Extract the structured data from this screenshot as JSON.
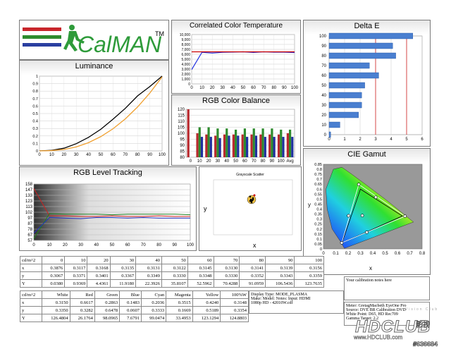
{
  "logo": {
    "text": "CalMAN",
    "tm": "TM"
  },
  "luminance": {
    "title": "Luminance",
    "yticks": [
      "0",
      "0.1",
      "0.2",
      "0.3",
      "0.4",
      "0.5",
      "0.6",
      "0.7",
      "0.8",
      "0.9",
      "1"
    ],
    "xticks": [
      "0",
      "10",
      "20",
      "30",
      "40",
      "50",
      "60",
      "70",
      "80",
      "90",
      "100"
    ]
  },
  "cct": {
    "title": "Correlated Color Temperature",
    "yticks": [
      "0",
      "1,000",
      "2,000",
      "3,000",
      "4,000",
      "5,000",
      "6,000",
      "7,000",
      "8,000",
      "9,000",
      "10,000"
    ],
    "xticks": [
      "0",
      "10",
      "20",
      "30",
      "40",
      "50",
      "60",
      "70",
      "80",
      "90",
      "100"
    ]
  },
  "rgbbal": {
    "title": "RGB Color Balance",
    "yticks": [
      "80",
      "85",
      "90",
      "95",
      "100",
      "105",
      "110",
      "115",
      "120"
    ],
    "xticks": [
      "0",
      "10",
      "20",
      "30",
      "40",
      "50",
      "60",
      "70",
      "80",
      "90",
      "100",
      "Avg"
    ]
  },
  "deltae": {
    "title": "Delta E",
    "yticks": [
      "0",
      "10",
      "20",
      "30",
      "40",
      "50",
      "60",
      "70",
      "80",
      "90",
      "100"
    ],
    "xticks": [
      "0",
      "1",
      "2",
      "3",
      "4",
      "5",
      "6"
    ]
  },
  "rgbtrack": {
    "title": "RGB Level Tracking",
    "yticks": [
      "57",
      "67",
      "78",
      "87",
      "97",
      "102",
      "113",
      "123",
      "133",
      "147",
      "158"
    ],
    "xticks": [
      "0",
      "10",
      "20",
      "30",
      "40",
      "50",
      "60",
      "70",
      "80",
      "90",
      "100"
    ]
  },
  "scatter": {
    "title": "Grayscale Scatter",
    "xlabel": "x",
    "ylabel": "y"
  },
  "cie": {
    "title": "CIE Gamut",
    "xlabel": "x",
    "ylabel": "y",
    "yticks": [
      "0",
      "0.05",
      "0.1",
      "0.15",
      "0.2",
      "0.25",
      "0.3",
      "0.35",
      "0.4",
      "0.45",
      "0.5",
      "0.55",
      "0.6",
      "0.65",
      "0.7",
      "0.75",
      "0.8",
      "0.85"
    ],
    "xticks": [
      "0",
      "0.1",
      "0.2",
      "0.3",
      "0.4",
      "0.5",
      "0.6",
      "0.7",
      "0.8"
    ]
  },
  "table1": {
    "header": [
      "cd/m^2",
      "0",
      "10",
      "20",
      "30",
      "40",
      "50",
      "60",
      "70",
      "80",
      "90",
      "100"
    ],
    "rows": [
      [
        "x",
        "0.3876",
        "0.3117",
        "0.3168",
        "0.3135",
        "0.3131",
        "0.3122",
        "0.3145",
        "0.3130",
        "0.3141",
        "0.3139",
        "0.3156"
      ],
      [
        "y",
        "0.3067",
        "0.3371",
        "0.3401",
        "0.3367",
        "0.3349",
        "0.3330",
        "0.3348",
        "0.3330",
        "0.3352",
        "0.3343",
        "0.3359"
      ],
      [
        "Y",
        "0.0380",
        "0.9369",
        "4.4361",
        "11.9180",
        "22.3926",
        "35.8107",
        "52.5962",
        "70.4288",
        "91.0959",
        "106.5436",
        "123.7635"
      ]
    ]
  },
  "table2": {
    "header": [
      "cd/m^2",
      "White",
      "Red",
      "Green",
      "Blue",
      "Cyan",
      "Magenta",
      "Yellow",
      "100%W"
    ],
    "rows": [
      [
        "x",
        "0.3150",
        "0.6617",
        "0.2863",
        "0.1483",
        "0.2036",
        "0.3515",
        "0.4240",
        "0.3148"
      ],
      [
        "y",
        "0.3350",
        "0.3282",
        "0.6478",
        "0.0607",
        "0.3333",
        "0.1669",
        "0.5189",
        "0.3354"
      ],
      [
        "Y",
        "126.4804",
        "26.1764",
        "98.0965",
        "7.6791",
        "99.0474",
        "33.4953",
        "123.1294",
        "124.8803"
      ]
    ]
  },
  "display_info": [
    "Display Type: MODE_PLASMA",
    "Make: Model: Notes: Input: HDMI",
    "1080p HD  -   42010W.cdf"
  ],
  "meter_info": [
    "Meter: GretagMacbeth EyeOne Pro",
    "Source: DVE BR Calibration DVD",
    "White Point: D65, HD Rec709",
    "Gamma Target: 2.2"
  ],
  "notes": "Your calibration notes here",
  "watermark": {
    "brand": "HDCLUB",
    "site": "www.HDCLUB.com",
    "cn": "影视",
    "id": "#636684",
    "tagline": "Vision Club"
  },
  "chart_data": [
    {
      "type": "line",
      "title": "Luminance",
      "x": [
        0,
        10,
        20,
        30,
        40,
        50,
        60,
        70,
        80,
        90,
        100
      ],
      "ylim": [
        0,
        1
      ],
      "xlim": [
        0,
        100
      ],
      "series": [
        {
          "values": [
            0,
            0.008,
            0.036,
            0.096,
            0.181,
            0.289,
            0.425,
            0.569,
            0.736,
            0.861,
            1.0
          ],
          "color": "#000000"
        },
        {
          "values": [
            0,
            0.004,
            0.019,
            0.053,
            0.11,
            0.191,
            0.296,
            0.428,
            0.587,
            0.774,
            0.99
          ],
          "color": "#f0a030"
        }
      ]
    },
    {
      "type": "line",
      "title": "Correlated Color Temperature",
      "x": [
        0,
        10,
        20,
        30,
        40,
        50,
        60,
        70,
        80,
        90,
        100
      ],
      "ylim": [
        0,
        10000
      ],
      "xlim": [
        0,
        100
      ],
      "series": [
        {
          "values": [
            2900,
            6400,
            6250,
            6400,
            6450,
            6500,
            6380,
            6500,
            6420,
            6430,
            6350
          ],
          "color": "#2030e0"
        },
        {
          "values": [
            6500,
            6500,
            6500,
            6500,
            6500,
            6500,
            6500,
            6500,
            6500,
            6500,
            6500
          ],
          "color": "#cc0000"
        }
      ]
    },
    {
      "type": "bar",
      "title": "RGB Color Balance",
      "categories": [
        "0",
        "10",
        "20",
        "30",
        "40",
        "50",
        "60",
        "70",
        "80",
        "90",
        "100",
        "Avg"
      ],
      "ylim": [
        80,
        120
      ],
      "series": [
        {
          "values": [
            120,
            100,
            99,
            98,
            99,
            99,
            99,
            99,
            99,
            99,
            99,
            100
          ],
          "color": "#b8292e"
        },
        {
          "values": [
            80,
            105,
            105,
            104,
            104,
            103,
            104,
            104,
            104,
            104,
            103,
            103
          ],
          "color": "#2e8b2e"
        },
        {
          "values": [
            80,
            97,
            97,
            96,
            98,
            98,
            97,
            98,
            97,
            97,
            97,
            97
          ],
          "color": "#2030a0"
        }
      ]
    },
    {
      "type": "bar",
      "title": "Delta E",
      "categories": [
        "0",
        "10",
        "20",
        "30",
        "40",
        "50",
        "60",
        "70",
        "80",
        "90",
        "100"
      ],
      "xlim": [
        0,
        6
      ],
      "values": [
        0.1,
        0.7,
        1.9,
        2.1,
        2.1,
        2.3,
        3.2,
        2.6,
        4.3,
        4.1,
        5.4
      ]
    },
    {
      "type": "line",
      "title": "RGB Level Tracking",
      "x": [
        0,
        10,
        20,
        30,
        40,
        50,
        60,
        70,
        80,
        90,
        100
      ],
      "ylim": [
        57,
        158
      ],
      "series": [
        {
          "values": [
            150,
            101,
            101,
            100,
            100,
            101,
            100,
            100,
            101,
            100,
            100
          ],
          "color": "#cc2020"
        },
        {
          "values": [
            60,
            105,
            104,
            104,
            104,
            103,
            104,
            104,
            104,
            104,
            103
          ],
          "color": "#208020"
        },
        {
          "values": [
            70,
            98,
            97,
            96,
            98,
            98,
            97,
            98,
            97,
            97,
            97
          ],
          "color": "#2030c0"
        }
      ]
    }
  ]
}
